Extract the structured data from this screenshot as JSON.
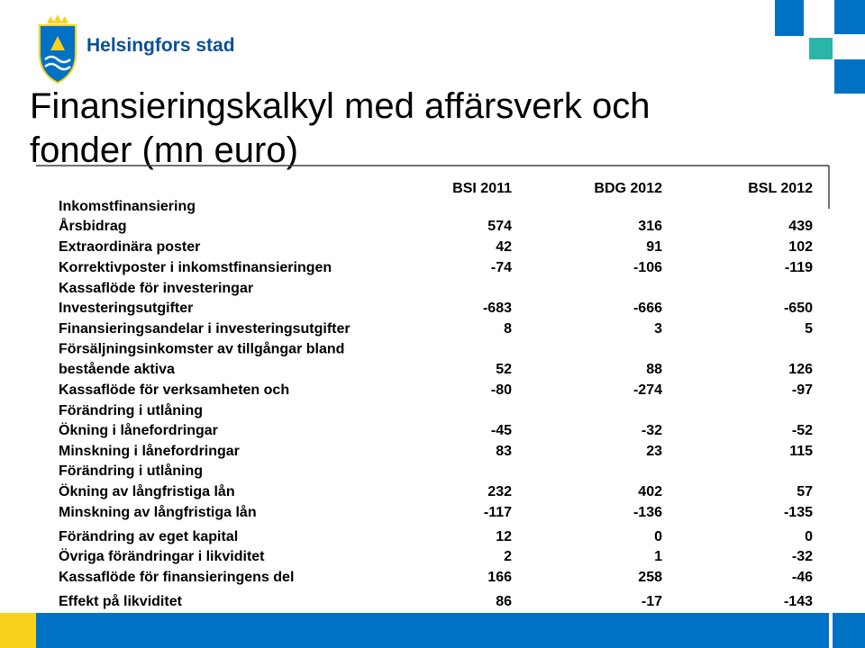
{
  "header": {
    "organization": "Helsingfors stad"
  },
  "title": [
    "Finansieringskalkyl med affärsverk och",
    "fonder (mn euro)"
  ],
  "table": {
    "columns": [
      "BSI 2011",
      "BDG 2012",
      "BSL 2012"
    ],
    "accent_color": "#e2001a",
    "rows": [
      {
        "label": "Inkomstfinansiering",
        "accent": true,
        "values": []
      },
      {
        "label": "Årsbidrag",
        "values": [
          574,
          316,
          439
        ]
      },
      {
        "label": "Extraordinära poster",
        "values": [
          42,
          91,
          102
        ]
      },
      {
        "label": "Korrektivposter i inkomstfinansieringen",
        "values": [
          -74,
          -106,
          -119
        ]
      },
      {
        "label": "Kassaflöde för investeringar",
        "accent": true,
        "values": []
      },
      {
        "label": "Investeringsutgifter",
        "values": [
          -683,
          -666,
          -650
        ]
      },
      {
        "label": "Finansieringsandelar i investeringsutgifter",
        "values": [
          8,
          3,
          5
        ]
      },
      {
        "label": [
          "Försäljningsinkomster av tillgångar bland",
          "bestående aktiva"
        ],
        "values": [
          52,
          88,
          126
        ]
      },
      {
        "label": "Kassaflöde för verksamheten och",
        "accent": true,
        "values": [
          -80,
          -274,
          -97
        ]
      },
      {
        "label": "Förändring i utlåning",
        "accent": true,
        "values": []
      },
      {
        "label": "Ökning i lånefordringar",
        "values": [
          -45,
          -32,
          -52
        ]
      },
      {
        "label": "Minskning i lånefordringar",
        "values": [
          83,
          23,
          115
        ]
      },
      {
        "label": "Förändring i utlåning",
        "accent": true,
        "values": []
      },
      {
        "label": "Ökning av långfristiga lån",
        "values": [
          232,
          402,
          57
        ]
      },
      {
        "label": "Minskning av långfristiga lån",
        "values": [
          -117,
          -136,
          -135
        ]
      },
      {
        "label": "Förändring av eget kapital",
        "values": [
          12,
          0,
          0
        ]
      },
      {
        "label": "Övriga förändringar i likviditet",
        "values": [
          2,
          1,
          -32
        ]
      },
      {
        "label": "Kassaflöde för finansieringens del",
        "accent": true,
        "values": [
          166,
          258,
          -46
        ]
      },
      {
        "label": "Effekt på likviditet",
        "accent": true,
        "values": [
          86,
          -17,
          -143
        ]
      }
    ]
  }
}
